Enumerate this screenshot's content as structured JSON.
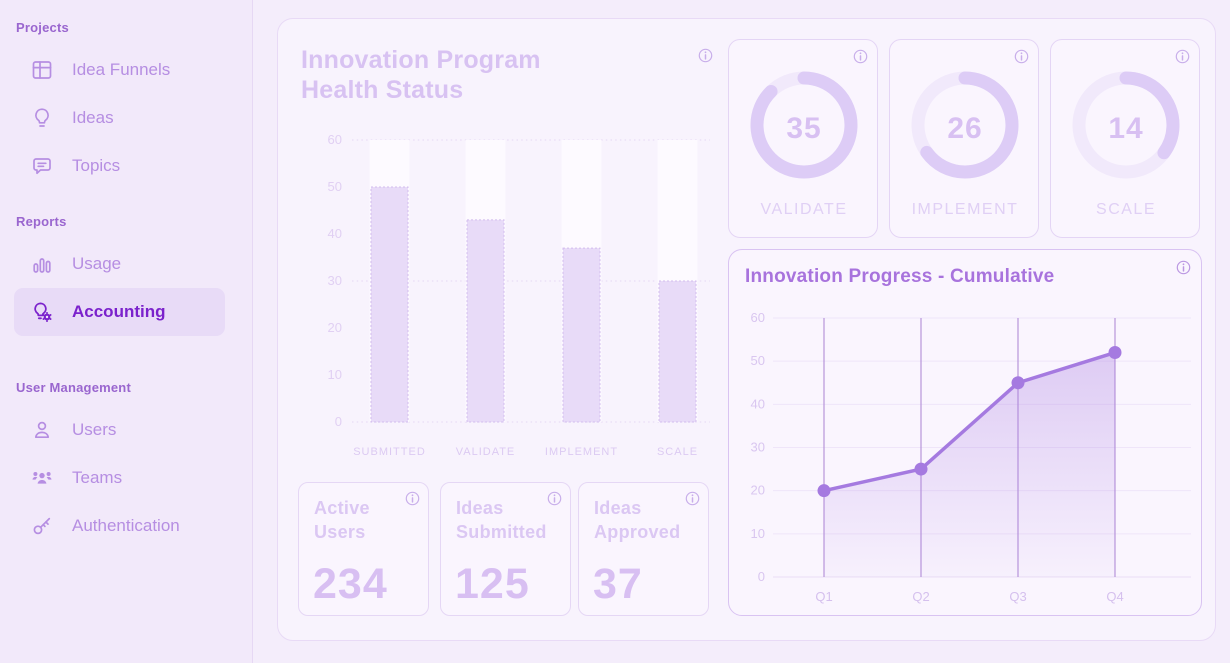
{
  "colors": {
    "page_bg": "#f4edfb",
    "sidebar_bg": "#f2e9fa",
    "panel_bg": "#f8f3fd",
    "card_bg": "#faf5fe",
    "accent_active": "#7b22cc",
    "section_header": "#9a66cf",
    "sidebar_item": "#b68ee2",
    "dimmed_title": "#d8c2f2",
    "line_title": "#a873dd",
    "line_stroke": "#a57ae0",
    "bar_fill": "#e8dbf8",
    "gauge_arc": "#ddccf6"
  },
  "sidebar": {
    "sections": [
      {
        "label": "Projects",
        "items": [
          {
            "label": "Idea Funnels",
            "icon": "grid-icon",
            "active": false
          },
          {
            "label": "Ideas",
            "icon": "lightbulb-icon",
            "active": false
          },
          {
            "label": "Topics",
            "icon": "chat-icon",
            "active": false
          }
        ]
      },
      {
        "label": "Reports",
        "items": [
          {
            "label": "Usage",
            "icon": "bar-chart-icon",
            "active": false
          },
          {
            "label": "Accounting",
            "icon": "lightbulb-gear-icon",
            "active": true
          }
        ]
      },
      {
        "label": "User Management",
        "items": [
          {
            "label": "Users",
            "icon": "user-icon",
            "active": false
          },
          {
            "label": "Teams",
            "icon": "team-icon",
            "active": false
          },
          {
            "label": "Authentication",
            "icon": "key-icon",
            "active": false
          }
        ]
      }
    ]
  },
  "main": {
    "health_title_line1": "Innovation Program",
    "health_title_line2": "Health Status",
    "progress_title": "Innovation Progress - Cumulative",
    "gauges": [
      {
        "label": "VALIDATE",
        "value": "35"
      },
      {
        "label": "IMPLEMENT",
        "value": "26"
      },
      {
        "label": "SCALE",
        "value": "14"
      }
    ],
    "stats": [
      {
        "title_line1": "Active",
        "title_line2": "Users",
        "value": "234"
      },
      {
        "title_line1": "Ideas",
        "title_line2": "Submitted",
        "value": "125"
      },
      {
        "title_line1": "Ideas",
        "title_line2": "Approved",
        "value": "37"
      }
    ]
  },
  "chart_data": [
    {
      "type": "bar",
      "title": "Innovation Program Health Status",
      "categories": [
        "SUBMITTED",
        "VALIDATE",
        "IMPLEMENT",
        "SCALE"
      ],
      "values": [
        50,
        43,
        37,
        30
      ],
      "xlabel": "",
      "ylabel": "",
      "ylim": [
        0,
        60
      ],
      "yticks": [
        0,
        10,
        20,
        30,
        40,
        50,
        60
      ],
      "gridlines_at": [
        0,
        30,
        60
      ],
      "grid": "dotted-horizontal",
      "legend": "none",
      "column_background": true
    },
    {
      "type": "gauge",
      "items": [
        {
          "label": "VALIDATE",
          "value": 35
        },
        {
          "label": "IMPLEMENT",
          "value": 26
        },
        {
          "label": "SCALE",
          "value": 14
        }
      ],
      "render_max": 40
    },
    {
      "type": "area",
      "title": "Innovation Progress - Cumulative",
      "x": [
        "Q1",
        "Q2",
        "Q3",
        "Q4"
      ],
      "values": [
        20,
        25,
        45,
        52
      ],
      "ylim": [
        0,
        60
      ],
      "yticks": [
        0,
        10,
        20,
        30,
        40,
        50,
        60
      ],
      "grid": "horizontal-light + vertical-quarter-lines",
      "legend": "none",
      "markers": "circle"
    }
  ]
}
